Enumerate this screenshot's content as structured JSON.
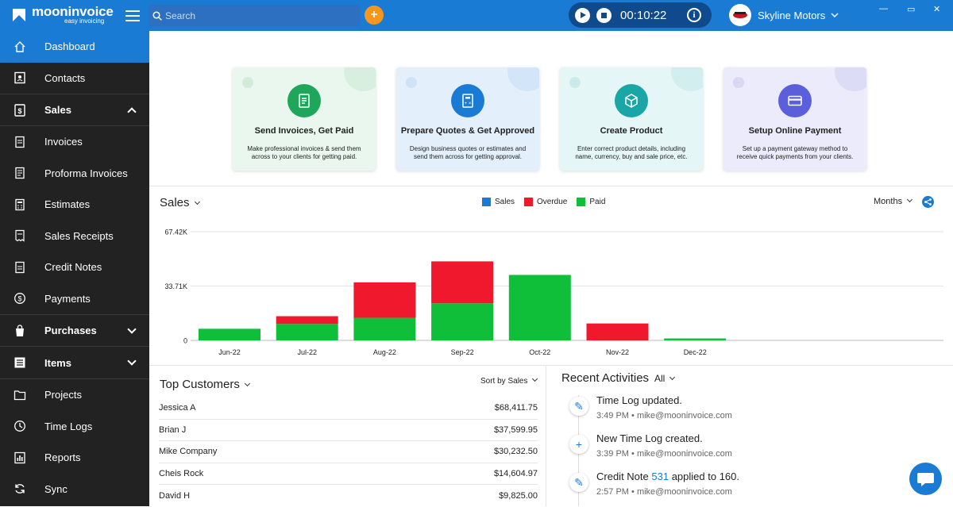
{
  "app": {
    "name": "mooninvoice",
    "tagline": "easy invoicing"
  },
  "search": {
    "placeholder": "Search"
  },
  "timer": {
    "value": "00:10:22"
  },
  "company": {
    "name": "Skyline Motors"
  },
  "sidebar": {
    "items": [
      {
        "label": "Dashboard",
        "icon": "home-icon"
      },
      {
        "label": "Contacts",
        "icon": "contacts-icon"
      },
      {
        "label": "Sales",
        "icon": "sales-icon"
      },
      {
        "label": "Invoices",
        "icon": "invoice-icon"
      },
      {
        "label": "Proforma Invoices",
        "icon": "proforma-icon"
      },
      {
        "label": "Estimates",
        "icon": "estimate-icon"
      },
      {
        "label": "Sales Receipts",
        "icon": "receipt-icon"
      },
      {
        "label": "Credit Notes",
        "icon": "credit-note-icon"
      },
      {
        "label": "Payments",
        "icon": "payments-icon"
      },
      {
        "label": "Purchases",
        "icon": "purchases-icon"
      },
      {
        "label": "Items",
        "icon": "items-icon"
      },
      {
        "label": "Projects",
        "icon": "folder-icon"
      },
      {
        "label": "Time Logs",
        "icon": "clock-icon"
      },
      {
        "label": "Reports",
        "icon": "reports-icon"
      },
      {
        "label": "Sync",
        "icon": "sync-icon"
      }
    ]
  },
  "cards": [
    {
      "title": "Send Invoices, Get Paid",
      "desc": "Make professional invoices & send them across to your clients for getting paid.",
      "color": "#1ea75a",
      "bg": "#e9f7ee"
    },
    {
      "title": "Prepare Quotes & Get Approved",
      "desc": "Design business quotes or estimates and send them across for getting approval.",
      "color": "#1a7bd5",
      "bg": "#e3effb"
    },
    {
      "title": "Create Product",
      "desc": "Enter correct product details, including name, currency, buy and sale price, etc.",
      "color": "#1aa6a6",
      "bg": "#e4f6f6"
    },
    {
      "title": "Setup Online Payment",
      "desc": "Set up a payment gateway method to receive quick payments from your clients.",
      "color": "#5b5fdb",
      "bg": "#ebebfb"
    }
  ],
  "sales": {
    "title": "Sales",
    "period": "Months"
  },
  "chart_data": {
    "type": "bar",
    "stacked": true,
    "categories": [
      "Jun-22",
      "Jul-22",
      "Aug-22",
      "Sep-22",
      "Oct-22",
      "Nov-22",
      "Dec-22"
    ],
    "series": [
      {
        "name": "Sales",
        "color": "#1a7bd5",
        "values": [
          0,
          0,
          0,
          0,
          0,
          0,
          0
        ]
      },
      {
        "name": "Paid",
        "color": "#0fbf3a",
        "values": [
          7200,
          10200,
          14000,
          23000,
          40600,
          0,
          1200
        ]
      },
      {
        "name": "Overdue",
        "color": "#f0182d",
        "values": [
          0,
          4800,
          22000,
          26000,
          0,
          10500,
          0
        ]
      }
    ],
    "yticks": [
      "0",
      "33.71K",
      "67.42K"
    ],
    "ylim": [
      0,
      67420
    ],
    "legend_order": [
      "Sales",
      "Overdue",
      "Paid"
    ],
    "grid": true,
    "legend": "top-center"
  },
  "customers": {
    "title": "Top Customers",
    "sort": "Sort by Sales",
    "rows": [
      {
        "name": "Jessica A",
        "amount": "$68,411.75"
      },
      {
        "name": "Brian J",
        "amount": "$37,599.95"
      },
      {
        "name": "Mike Company",
        "amount": "$30,232.50"
      },
      {
        "name": "Cheis Rock",
        "amount": "$14,604.97"
      },
      {
        "name": "David H",
        "amount": "$9,825.00"
      }
    ]
  },
  "activities": {
    "title": "Recent Activities",
    "filter": "All",
    "items": [
      {
        "icon": "pencil-icon",
        "glyph": "✎",
        "title": "Time Log updated.",
        "time": "3:49 PM",
        "email": "mike@mooninvoice.com"
      },
      {
        "icon": "plus-icon",
        "glyph": "+",
        "title": "New Time Log created.",
        "time": "3:39 PM",
        "email": "mike@mooninvoice.com"
      },
      {
        "icon": "pencil-icon",
        "glyph": "✎",
        "title_pre": "Credit Note",
        "title_link": "531",
        "title_post": "applied to 160.",
        "time": "2:57 PM",
        "email": "mike@mooninvoice.com"
      }
    ]
  }
}
